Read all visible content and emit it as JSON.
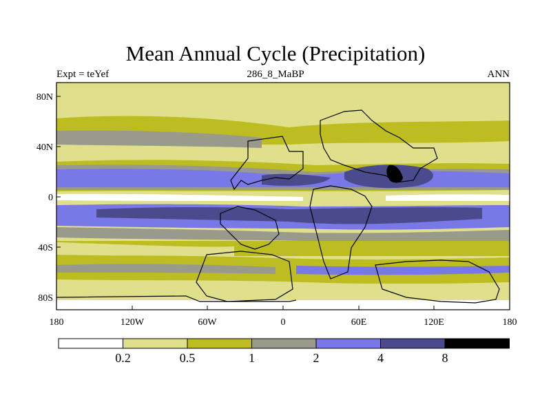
{
  "title": "Mean Annual Cycle (Precipitation)",
  "left_label": "Expt = teYef",
  "center_label": "286_8_MaBP",
  "right_label": "ANN",
  "y_ticks": [
    "80N",
    "40N",
    "0",
    "40S",
    "80S"
  ],
  "x_ticks": [
    "180",
    "120W",
    "60W",
    "0",
    "60E",
    "120E",
    "180"
  ],
  "colorbar": {
    "labels": [
      "0.2",
      "0.5",
      "1",
      "2",
      "4",
      "8"
    ],
    "colors": [
      "#ffffff",
      "#e0e08c",
      "#bdbd21",
      "#9a9a8c",
      "#7878e6",
      "#4a4a8c",
      "#000000"
    ]
  }
}
